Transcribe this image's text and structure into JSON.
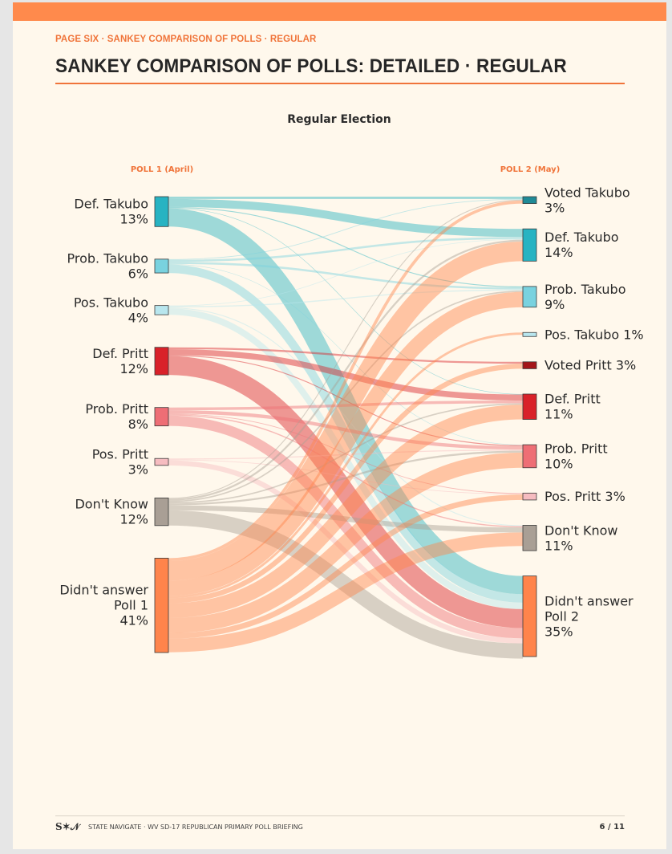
{
  "header": {
    "kicker": "PAGE SIX · SANKEY COMPARISON OF POLLS · REGULAR",
    "title": "SANKEY COMPARISON OF POLLS: DETAILED · REGULAR"
  },
  "footer": {
    "logo": "S✶𝒩",
    "text": "STATE NAVIGATE · WV SD-17 REPUBLICAN PRIMARY POLL BRIEFING",
    "page": "6 / 11"
  },
  "colors": {
    "accent": "#f0743a",
    "topbar": "#ff8a4c",
    "background": "#fff8ec"
  },
  "chart_data": {
    "type": "sankey",
    "title": "Regular Election",
    "left_header": "POLL 1 (April)",
    "right_header": "POLL 2 (May)",
    "left_nodes": [
      {
        "label": "Def. Takubo",
        "pct": "13%",
        "value": 13,
        "color": "#27b3c2"
      },
      {
        "label": "Prob. Takubo",
        "pct": "6%",
        "value": 6,
        "color": "#79d2df"
      },
      {
        "label": "Pos. Takubo",
        "pct": "4%",
        "value": 4,
        "color": "#b8e6ee"
      },
      {
        "label": "Def. Pritt",
        "pct": "12%",
        "value": 12,
        "color": "#d92129"
      },
      {
        "label": "Prob. Pritt",
        "pct": "8%",
        "value": 8,
        "color": "#ee6e75"
      },
      {
        "label": "Pos. Pritt",
        "pct": "3%",
        "value": 3,
        "color": "#f6bcc0"
      },
      {
        "label": "Don't Know",
        "pct": "12%",
        "value": 12,
        "color": "#a99f95"
      },
      {
        "label": "Didn't answer Poll 1",
        "pct": "41%",
        "value": 41,
        "color": "#ff844b"
      }
    ],
    "right_nodes": [
      {
        "label": "Voted Takubo",
        "pct": "3%",
        "value": 3,
        "color": "#1f8a96",
        "inline": false
      },
      {
        "label": "Def. Takubo",
        "pct": "14%",
        "value": 14,
        "color": "#27b3c2",
        "inline": false
      },
      {
        "label": "Prob. Takubo",
        "pct": "9%",
        "value": 9,
        "color": "#79d2df",
        "inline": false
      },
      {
        "label": "Pos. Takubo",
        "pct": "1%",
        "value": 1,
        "color": "#b8e6ee",
        "inline": true
      },
      {
        "label": "Voted Pritt",
        "pct": "3%",
        "value": 3,
        "color": "#a31519",
        "inline": true
      },
      {
        "label": "Def. Pritt",
        "pct": "11%",
        "value": 11,
        "color": "#d92129",
        "inline": false
      },
      {
        "label": "Prob. Pritt",
        "pct": "10%",
        "value": 10,
        "color": "#ee6e75",
        "inline": false
      },
      {
        "label": "Pos. Pritt",
        "pct": "3%",
        "value": 3,
        "color": "#f6bcc0",
        "inline": true
      },
      {
        "label": "Don't Know",
        "pct": "11%",
        "value": 11,
        "color": "#a99f95",
        "inline": false
      },
      {
        "label": "Didn't answer Poll 2",
        "pct": "35%",
        "value": 35,
        "color": "#ff844b",
        "inline": false
      }
    ],
    "flows": [
      {
        "from": 0,
        "to": 0,
        "value": 1
      },
      {
        "from": 0,
        "to": 1,
        "value": 3.5
      },
      {
        "from": 0,
        "to": 2,
        "value": 0.4
      },
      {
        "from": 0,
        "to": 5,
        "value": 0.2
      },
      {
        "from": 0,
        "to": 9,
        "value": 7.9
      },
      {
        "from": 1,
        "to": 0,
        "value": 0.3
      },
      {
        "from": 1,
        "to": 1,
        "value": 0.9
      },
      {
        "from": 1,
        "to": 2,
        "value": 0.9
      },
      {
        "from": 1,
        "to": 6,
        "value": 0.2
      },
      {
        "from": 1,
        "to": 9,
        "value": 3.7
      },
      {
        "from": 2,
        "to": 1,
        "value": 0.3
      },
      {
        "from": 2,
        "to": 2,
        "value": 0.5
      },
      {
        "from": 2,
        "to": 8,
        "value": 0.4
      },
      {
        "from": 2,
        "to": 9,
        "value": 2.8
      },
      {
        "from": 3,
        "to": 4,
        "value": 0.8
      },
      {
        "from": 3,
        "to": 5,
        "value": 2.6
      },
      {
        "from": 3,
        "to": 6,
        "value": 0.4
      },
      {
        "from": 3,
        "to": 9,
        "value": 8.2
      },
      {
        "from": 4,
        "to": 5,
        "value": 1.2
      },
      {
        "from": 4,
        "to": 6,
        "value": 1.5
      },
      {
        "from": 4,
        "to": 7,
        "value": 0.3
      },
      {
        "from": 4,
        "to": 8,
        "value": 0.5
      },
      {
        "from": 4,
        "to": 9,
        "value": 4.5
      },
      {
        "from": 5,
        "to": 6,
        "value": 0.5
      },
      {
        "from": 5,
        "to": 7,
        "value": 0.3
      },
      {
        "from": 5,
        "to": 9,
        "value": 2.2
      },
      {
        "from": 6,
        "to": 0,
        "value": 0.4
      },
      {
        "from": 6,
        "to": 1,
        "value": 0.8
      },
      {
        "from": 6,
        "to": 2,
        "value": 0.6
      },
      {
        "from": 6,
        "to": 5,
        "value": 0.6
      },
      {
        "from": 6,
        "to": 6,
        "value": 0.8
      },
      {
        "from": 6,
        "to": 8,
        "value": 2.2
      },
      {
        "from": 6,
        "to": 9,
        "value": 6.6
      },
      {
        "from": 7,
        "to": 0,
        "value": 1.3
      },
      {
        "from": 7,
        "to": 1,
        "value": 8.5
      },
      {
        "from": 7,
        "to": 2,
        "value": 6.6
      },
      {
        "from": 7,
        "to": 3,
        "value": 1
      },
      {
        "from": 7,
        "to": 4,
        "value": 2.2
      },
      {
        "from": 7,
        "to": 5,
        "value": 6.4
      },
      {
        "from": 7,
        "to": 6,
        "value": 6.6
      },
      {
        "from": 7,
        "to": 7,
        "value": 2.4
      },
      {
        "from": 7,
        "to": 8,
        "value": 5.9
      }
    ]
  }
}
